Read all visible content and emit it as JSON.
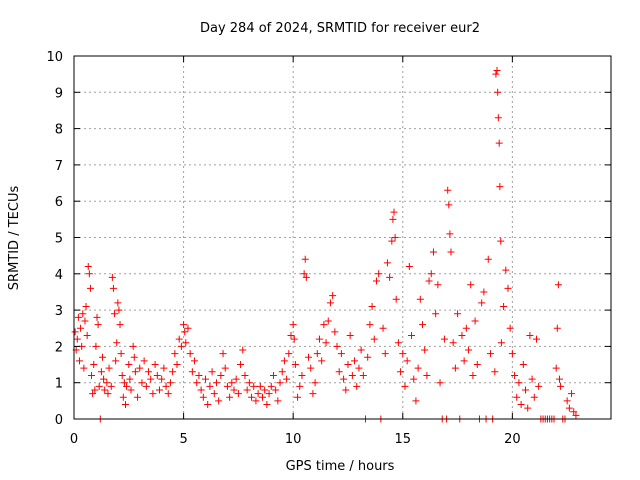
{
  "chart_data": {
    "type": "scatter",
    "title": "Day 284 of 2024, SRMTID for receiver eur2",
    "xlabel": "GPS time / hours",
    "ylabel": "SRMTID / TECUs",
    "xlim": [
      0,
      24.5
    ],
    "ylim": [
      0,
      10
    ],
    "xticks": [
      0,
      5,
      10,
      15,
      20
    ],
    "yticks": [
      0,
      1,
      2,
      3,
      4,
      5,
      6,
      7,
      8,
      9,
      10
    ],
    "grid": true,
    "marker": "+",
    "series": [
      {
        "name": "SRMTID",
        "color": "#ff0000",
        "points": [
          [
            0.05,
            2.4
          ],
          [
            0.1,
            1.9
          ],
          [
            0.15,
            2.2
          ],
          [
            0.2,
            2.8
          ],
          [
            0.25,
            1.6
          ],
          [
            0.3,
            2.5
          ],
          [
            0.35,
            2.0
          ],
          [
            0.4,
            2.9
          ],
          [
            0.45,
            1.4
          ],
          [
            0.5,
            2.7
          ],
          [
            0.55,
            3.1
          ],
          [
            0.6,
            2.3
          ],
          [
            0.65,
            4.2
          ],
          [
            0.7,
            4.0
          ],
          [
            0.75,
            3.6
          ],
          [
            0.8,
            1.2
          ],
          [
            0.85,
            0.7
          ],
          [
            0.9,
            1.5
          ],
          [
            0.95,
            0.8
          ],
          [
            1.0,
            2.0
          ],
          [
            1.05,
            2.8
          ],
          [
            1.1,
            2.6
          ],
          [
            1.15,
            0.9
          ],
          [
            1.2,
            0.0
          ],
          [
            1.25,
            1.3
          ],
          [
            1.3,
            1.7
          ],
          [
            1.35,
            1.1
          ],
          [
            1.4,
            0.8
          ],
          [
            1.5,
            1.0
          ],
          [
            1.55,
            0.7
          ],
          [
            1.6,
            1.4
          ],
          [
            1.7,
            0.9
          ],
          [
            1.75,
            3.9
          ],
          [
            1.8,
            3.6
          ],
          [
            1.85,
            2.9
          ],
          [
            1.9,
            1.6
          ],
          [
            1.95,
            2.1
          ],
          [
            2.0,
            3.2
          ],
          [
            2.05,
            3.0
          ],
          [
            2.1,
            2.6
          ],
          [
            2.15,
            1.8
          ],
          [
            2.2,
            1.2
          ],
          [
            2.25,
            0.6
          ],
          [
            2.3,
            1.0
          ],
          [
            2.35,
            0.4
          ],
          [
            2.4,
            0.9
          ],
          [
            2.5,
            1.5
          ],
          [
            2.55,
            1.1
          ],
          [
            2.6,
            0.8
          ],
          [
            2.7,
            2.0
          ],
          [
            2.75,
            1.7
          ],
          [
            2.8,
            1.3
          ],
          [
            2.9,
            0.6
          ],
          [
            3.0,
            1.4
          ],
          [
            3.1,
            1.0
          ],
          [
            3.2,
            1.6
          ],
          [
            3.3,
            0.9
          ],
          [
            3.4,
            1.3
          ],
          [
            3.5,
            1.1
          ],
          [
            3.6,
            0.7
          ],
          [
            3.7,
            1.5
          ],
          [
            3.8,
            1.2
          ],
          [
            3.9,
            0.8
          ],
          [
            4.0,
            1.1
          ],
          [
            4.1,
            1.4
          ],
          [
            4.2,
            0.9
          ],
          [
            4.3,
            0.7
          ],
          [
            4.4,
            1.0
          ],
          [
            4.5,
            1.3
          ],
          [
            4.6,
            1.8
          ],
          [
            4.7,
            1.5
          ],
          [
            4.8,
            2.2
          ],
          [
            4.9,
            2.0
          ],
          [
            5.0,
            2.6
          ],
          [
            5.05,
            2.4
          ],
          [
            5.1,
            2.1
          ],
          [
            5.2,
            2.5
          ],
          [
            5.3,
            1.8
          ],
          [
            5.4,
            1.3
          ],
          [
            5.5,
            1.6
          ],
          [
            5.6,
            1.0
          ],
          [
            5.7,
            1.2
          ],
          [
            5.8,
            0.8
          ],
          [
            5.9,
            0.6
          ],
          [
            6.0,
            1.1
          ],
          [
            6.1,
            0.4
          ],
          [
            6.2,
            0.9
          ],
          [
            6.3,
            1.3
          ],
          [
            6.4,
            0.7
          ],
          [
            6.5,
            1.0
          ],
          [
            6.6,
            0.5
          ],
          [
            6.7,
            1.2
          ],
          [
            6.8,
            1.8
          ],
          [
            6.9,
            1.4
          ],
          [
            7.0,
            0.9
          ],
          [
            7.1,
            0.6
          ],
          [
            7.2,
            1.0
          ],
          [
            7.3,
            0.8
          ],
          [
            7.4,
            1.1
          ],
          [
            7.5,
            0.7
          ],
          [
            7.6,
            1.5
          ],
          [
            7.7,
            1.9
          ],
          [
            7.8,
            1.2
          ],
          [
            7.9,
            0.8
          ],
          [
            8.0,
            1.0
          ],
          [
            8.1,
            0.6
          ],
          [
            8.2,
            0.9
          ],
          [
            8.3,
            0.5
          ],
          [
            8.4,
            0.7
          ],
          [
            8.5,
            0.9
          ],
          [
            8.6,
            0.6
          ],
          [
            8.7,
            0.8
          ],
          [
            8.8,
            0.4
          ],
          [
            8.9,
            0.7
          ],
          [
            9.0,
            0.9
          ],
          [
            9.1,
            1.2
          ],
          [
            9.2,
            0.8
          ],
          [
            9.3,
            0.5
          ],
          [
            9.4,
            1.0
          ],
          [
            9.5,
            1.3
          ],
          [
            9.6,
            1.6
          ],
          [
            9.7,
            1.1
          ],
          [
            9.8,
            1.8
          ],
          [
            9.9,
            2.3
          ],
          [
            10.0,
            2.6
          ],
          [
            10.05,
            2.2
          ],
          [
            10.1,
            1.5
          ],
          [
            10.2,
            0.6
          ],
          [
            10.3,
            0.9
          ],
          [
            10.4,
            1.2
          ],
          [
            10.5,
            4.0
          ],
          [
            10.55,
            4.4
          ],
          [
            10.6,
            3.9
          ],
          [
            10.7,
            1.7
          ],
          [
            10.8,
            1.4
          ],
          [
            10.9,
            0.7
          ],
          [
            11.0,
            1.0
          ],
          [
            11.1,
            1.8
          ],
          [
            11.2,
            2.2
          ],
          [
            11.3,
            1.6
          ],
          [
            11.4,
            2.6
          ],
          [
            11.5,
            2.1
          ],
          [
            11.6,
            2.7
          ],
          [
            11.7,
            3.2
          ],
          [
            11.8,
            3.4
          ],
          [
            11.9,
            2.4
          ],
          [
            12.0,
            2.0
          ],
          [
            12.1,
            1.3
          ],
          [
            12.2,
            1.8
          ],
          [
            12.3,
            1.1
          ],
          [
            12.4,
            0.8
          ],
          [
            12.5,
            1.5
          ],
          [
            12.6,
            2.3
          ],
          [
            12.7,
            1.2
          ],
          [
            12.8,
            1.6
          ],
          [
            12.9,
            0.9
          ],
          [
            13.0,
            1.4
          ],
          [
            13.1,
            1.9
          ],
          [
            13.2,
            1.2
          ],
          [
            13.3,
            0.0
          ],
          [
            13.4,
            1.7
          ],
          [
            13.5,
            2.6
          ],
          [
            13.6,
            3.1
          ],
          [
            13.7,
            2.2
          ],
          [
            13.8,
            3.8
          ],
          [
            13.9,
            4.0
          ],
          [
            14.0,
            0.0
          ],
          [
            14.1,
            2.5
          ],
          [
            14.2,
            1.8
          ],
          [
            14.3,
            4.3
          ],
          [
            14.4,
            3.9
          ],
          [
            14.5,
            4.9
          ],
          [
            14.55,
            5.5
          ],
          [
            14.6,
            5.7
          ],
          [
            14.65,
            5.0
          ],
          [
            14.7,
            3.3
          ],
          [
            14.8,
            2.1
          ],
          [
            14.9,
            1.3
          ],
          [
            15.0,
            1.8
          ],
          [
            15.1,
            0.9
          ],
          [
            15.2,
            1.6
          ],
          [
            15.3,
            4.2
          ],
          [
            15.4,
            2.3
          ],
          [
            15.5,
            1.1
          ],
          [
            15.6,
            0.5
          ],
          [
            15.7,
            1.4
          ],
          [
            15.8,
            3.3
          ],
          [
            15.9,
            2.6
          ],
          [
            16.0,
            1.9
          ],
          [
            16.1,
            1.2
          ],
          [
            16.2,
            3.8
          ],
          [
            16.3,
            4.0
          ],
          [
            16.4,
            4.6
          ],
          [
            16.5,
            2.9
          ],
          [
            16.6,
            3.7
          ],
          [
            16.7,
            1.0
          ],
          [
            16.8,
            0.0
          ],
          [
            16.9,
            2.2
          ],
          [
            17.0,
            0.0
          ],
          [
            17.05,
            6.3
          ],
          [
            17.1,
            5.9
          ],
          [
            17.15,
            5.1
          ],
          [
            17.2,
            4.6
          ],
          [
            17.3,
            2.1
          ],
          [
            17.4,
            1.4
          ],
          [
            17.5,
            2.9
          ],
          [
            17.6,
            0.0
          ],
          [
            17.7,
            2.3
          ],
          [
            17.8,
            1.6
          ],
          [
            17.9,
            2.5
          ],
          [
            18.0,
            1.9
          ],
          [
            18.1,
            3.7
          ],
          [
            18.2,
            1.2
          ],
          [
            18.3,
            2.7
          ],
          [
            18.4,
            1.5
          ],
          [
            18.5,
            0.0
          ],
          [
            18.6,
            3.2
          ],
          [
            18.7,
            3.5
          ],
          [
            18.8,
            0.0
          ],
          [
            18.9,
            4.4
          ],
          [
            19.0,
            1.8
          ],
          [
            19.1,
            0.0
          ],
          [
            19.2,
            1.3
          ],
          [
            19.25,
            9.5
          ],
          [
            19.3,
            9.6
          ],
          [
            19.33,
            9.0
          ],
          [
            19.36,
            8.3
          ],
          [
            19.4,
            7.6
          ],
          [
            19.43,
            6.4
          ],
          [
            19.47,
            4.9
          ],
          [
            19.5,
            2.1
          ],
          [
            19.6,
            3.1
          ],
          [
            19.7,
            4.1
          ],
          [
            19.8,
            3.6
          ],
          [
            19.9,
            2.5
          ],
          [
            20.0,
            1.8
          ],
          [
            20.1,
            1.2
          ],
          [
            20.2,
            0.6
          ],
          [
            20.3,
            1.0
          ],
          [
            20.4,
            0.4
          ],
          [
            20.5,
            1.5
          ],
          [
            20.6,
            0.8
          ],
          [
            20.7,
            0.3
          ],
          [
            20.8,
            2.3
          ],
          [
            20.9,
            1.1
          ],
          [
            21.0,
            0.6
          ],
          [
            21.1,
            2.2
          ],
          [
            21.2,
            0.9
          ],
          [
            21.3,
            0.0
          ],
          [
            21.4,
            0.0
          ],
          [
            21.5,
            0.0
          ],
          [
            21.6,
            0.0
          ],
          [
            21.7,
            0.0
          ],
          [
            21.8,
            0.0
          ],
          [
            21.9,
            0.0
          ],
          [
            22.0,
            1.4
          ],
          [
            22.05,
            2.5
          ],
          [
            22.1,
            3.7
          ],
          [
            22.15,
            1.1
          ],
          [
            22.2,
            0.9
          ],
          [
            22.3,
            0.0
          ],
          [
            22.4,
            0.0
          ],
          [
            22.5,
            0.5
          ],
          [
            22.6,
            0.3
          ],
          [
            22.7,
            0.7
          ],
          [
            22.8,
            0.2
          ],
          [
            22.9,
            0.1
          ]
        ]
      }
    ]
  }
}
